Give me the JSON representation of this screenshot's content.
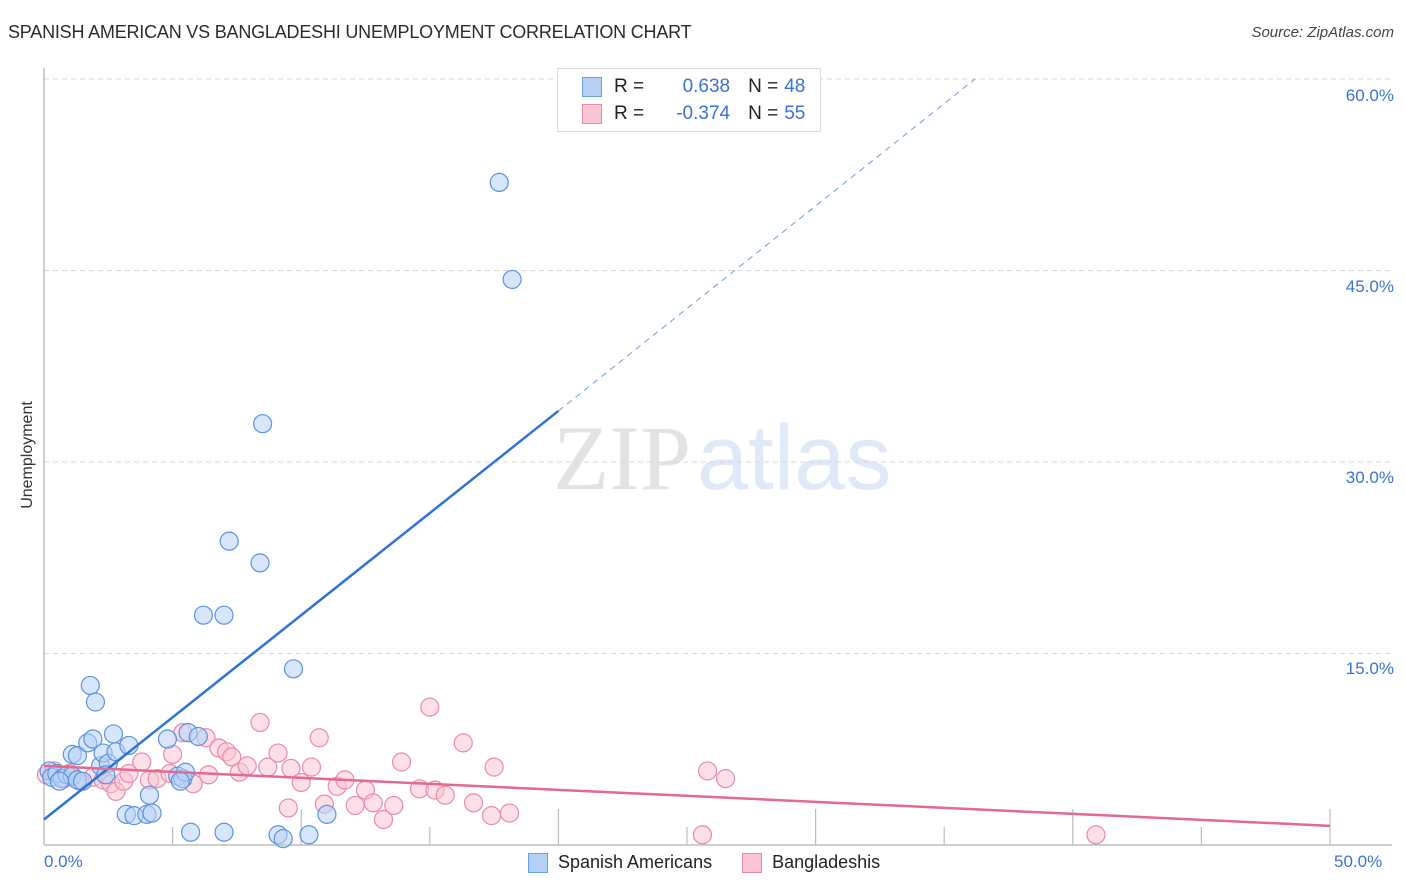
{
  "header": {
    "title": "SPANISH AMERICAN VS BANGLADESHI UNEMPLOYMENT CORRELATION CHART",
    "source": "Source: ZipAtlas.com"
  },
  "legend_top": {
    "rows": [
      {
        "r_label": "R =",
        "r_value": "0.638",
        "n_label": "N =",
        "n_value": "48",
        "color": "#b7d1f5"
      },
      {
        "r_label": "R =",
        "r_value": "-0.374",
        "n_label": "N =",
        "n_value": "55",
        "color": "#f9c4d4"
      }
    ]
  },
  "legend_bottom": {
    "items": [
      {
        "label": "Spanish Americans",
        "color": "#b7d1f5"
      },
      {
        "label": "Bangladeshis",
        "color": "#f9c4d4"
      }
    ]
  },
  "axes": {
    "ylabel": "Unemployment",
    "y_ticks": [
      "60.0%",
      "45.0%",
      "30.0%",
      "15.0%"
    ],
    "x_ticks": [
      "0.0%",
      "50.0%"
    ]
  },
  "watermark": {
    "zip": "ZIP",
    "atlas": "atlas"
  },
  "colors": {
    "blue_fill": "#b7d1f5",
    "blue_stroke": "#5b93dc",
    "blue_line": "#2f73d2",
    "pink_fill": "#f9c4d4",
    "pink_stroke": "#eb8aa8",
    "pink_line": "#e4688f",
    "tick_label": "#3a74d0"
  },
  "chart_data": {
    "type": "scatter",
    "title": "SPANISH AMERICAN VS BANGLADESHI UNEMPLOYMENT CORRELATION CHART",
    "xlabel": "",
    "ylabel": "Unemployment",
    "xlim": [
      0,
      50
    ],
    "ylim": [
      0,
      60
    ],
    "x_tick_labels": [
      "0.0%",
      "50.0%"
    ],
    "y_tick_labels": [
      "15.0%",
      "30.0%",
      "45.0%",
      "60.0%"
    ],
    "grid": "horizontal dashed",
    "legend_position": "top-center and bottom",
    "series": [
      {
        "name": "Spanish Americans",
        "r": 0.638,
        "n": 48,
        "trendline": {
          "x": [
            0,
            20,
            36.2
          ],
          "y": [
            2.0,
            34.0,
            60.0
          ],
          "solid_until_x": 20
        },
        "points": [
          [
            0.2,
            5.8
          ],
          [
            0.3,
            5.3
          ],
          [
            0.5,
            5.6
          ],
          [
            0.7,
            5.2
          ],
          [
            0.9,
            5.5
          ],
          [
            1.1,
            5.4
          ],
          [
            1.3,
            5.1
          ],
          [
            1.5,
            5.0
          ],
          [
            1.1,
            7.1
          ],
          [
            1.3,
            7.0
          ],
          [
            1.7,
            8.0
          ],
          [
            1.9,
            8.3
          ],
          [
            1.8,
            12.5
          ],
          [
            2.0,
            11.2
          ],
          [
            2.2,
            6.2
          ],
          [
            2.3,
            7.2
          ],
          [
            2.5,
            6.4
          ],
          [
            2.7,
            8.7
          ],
          [
            2.8,
            7.3
          ],
          [
            3.3,
            7.8
          ],
          [
            3.2,
            2.4
          ],
          [
            3.5,
            2.3
          ],
          [
            4.0,
            2.4
          ],
          [
            4.2,
            2.5
          ],
          [
            4.1,
            3.9
          ],
          [
            4.8,
            8.3
          ],
          [
            5.2,
            5.4
          ],
          [
            5.4,
            5.2
          ],
          [
            5.5,
            5.7
          ],
          [
            5.3,
            5.0
          ],
          [
            5.6,
            8.8
          ],
          [
            6.0,
            8.5
          ],
          [
            5.7,
            1.0
          ],
          [
            6.2,
            18.0
          ],
          [
            7.0,
            18.0
          ],
          [
            7.2,
            23.8
          ],
          [
            7.0,
            1.0
          ],
          [
            8.4,
            22.1
          ],
          [
            8.5,
            33.0
          ],
          [
            9.1,
            0.8
          ],
          [
            9.3,
            0.5
          ],
          [
            9.7,
            13.8
          ],
          [
            10.3,
            0.8
          ],
          [
            11.0,
            2.4
          ],
          [
            17.7,
            51.9
          ],
          [
            18.2,
            44.3
          ],
          [
            0.6,
            5.0
          ],
          [
            2.4,
            5.5
          ]
        ]
      },
      {
        "name": "Bangladeshis",
        "r": -0.374,
        "n": 55,
        "trendline": {
          "x": [
            0,
            50
          ],
          "y": [
            6.2,
            1.5
          ]
        },
        "points": [
          [
            0.1,
            5.5
          ],
          [
            0.4,
            5.8
          ],
          [
            0.8,
            5.2
          ],
          [
            1.0,
            5.6
          ],
          [
            1.4,
            5.0
          ],
          [
            1.9,
            5.3
          ],
          [
            2.3,
            5.1
          ],
          [
            2.6,
            4.8
          ],
          [
            2.8,
            4.2
          ],
          [
            3.1,
            5.0
          ],
          [
            3.3,
            5.6
          ],
          [
            3.8,
            6.5
          ],
          [
            4.1,
            5.1
          ],
          [
            4.4,
            5.2
          ],
          [
            4.9,
            5.6
          ],
          [
            5.0,
            7.1
          ],
          [
            5.4,
            8.8
          ],
          [
            5.8,
            4.8
          ],
          [
            6.3,
            8.4
          ],
          [
            6.4,
            5.5
          ],
          [
            6.8,
            7.6
          ],
          [
            7.1,
            7.3
          ],
          [
            7.3,
            6.9
          ],
          [
            7.6,
            5.7
          ],
          [
            7.9,
            6.2
          ],
          [
            8.4,
            9.6
          ],
          [
            8.7,
            6.1
          ],
          [
            9.1,
            7.2
          ],
          [
            9.5,
            2.9
          ],
          [
            9.6,
            6.0
          ],
          [
            10.0,
            4.9
          ],
          [
            10.4,
            6.1
          ],
          [
            10.7,
            8.4
          ],
          [
            10.9,
            3.2
          ],
          [
            11.4,
            4.6
          ],
          [
            11.7,
            5.1
          ],
          [
            12.1,
            3.1
          ],
          [
            12.5,
            4.3
          ],
          [
            12.8,
            3.3
          ],
          [
            13.2,
            2.0
          ],
          [
            13.6,
            3.1
          ],
          [
            13.9,
            6.5
          ],
          [
            14.6,
            4.4
          ],
          [
            15.0,
            10.8
          ],
          [
            15.2,
            4.3
          ],
          [
            15.6,
            3.9
          ],
          [
            16.3,
            8.0
          ],
          [
            16.7,
            3.3
          ],
          [
            17.5,
            6.1
          ],
          [
            17.4,
            2.3
          ],
          [
            18.1,
            2.5
          ],
          [
            25.6,
            0.8
          ],
          [
            25.8,
            5.8
          ],
          [
            26.5,
            5.2
          ],
          [
            40.9,
            0.8
          ]
        ]
      }
    ]
  }
}
